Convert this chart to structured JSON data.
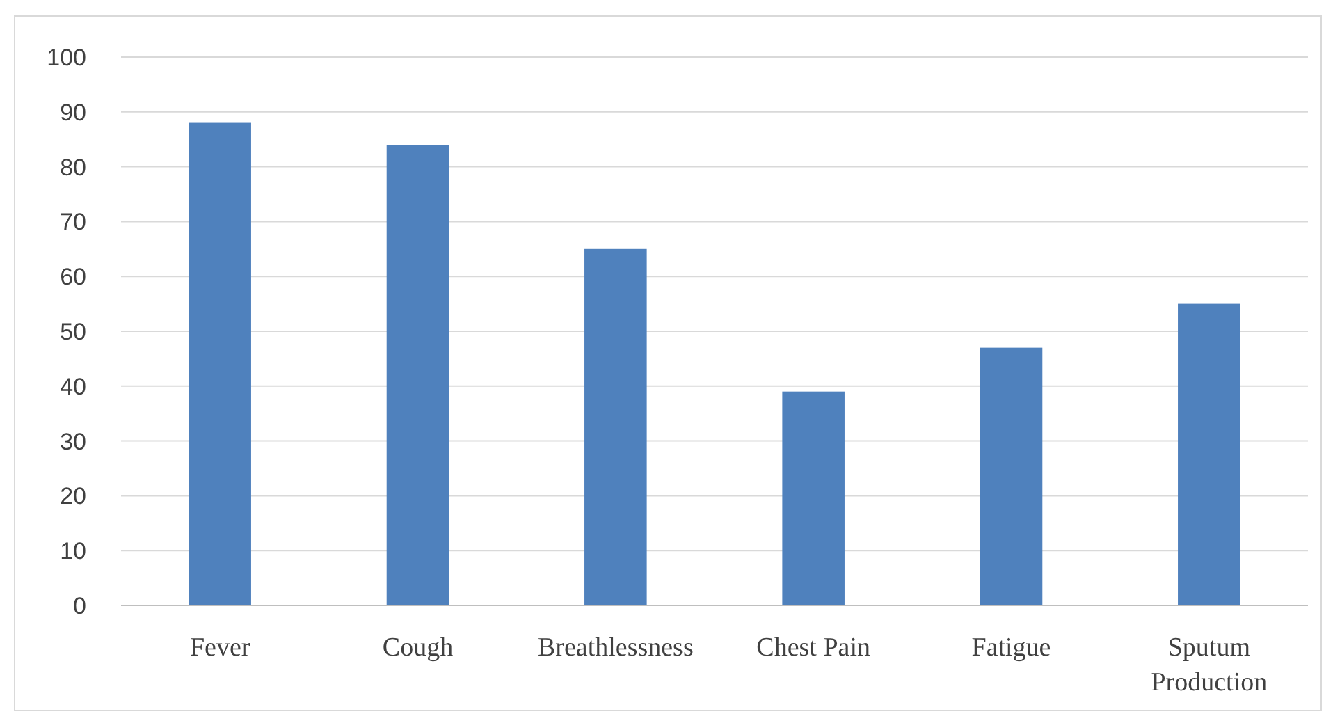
{
  "chart_data": {
    "type": "bar",
    "categories": [
      "Fever",
      "Cough",
      "Breathlessness",
      "Chest Pain",
      "Fatigue",
      "Sputum Production"
    ],
    "values": [
      88,
      84,
      65,
      39,
      47,
      55
    ],
    "color": "#4f81bd",
    "ylim": [
      0,
      100
    ],
    "yticks": [
      0,
      10,
      20,
      30,
      40,
      50,
      60,
      70,
      80,
      90,
      100
    ],
    "grid": "y"
  }
}
